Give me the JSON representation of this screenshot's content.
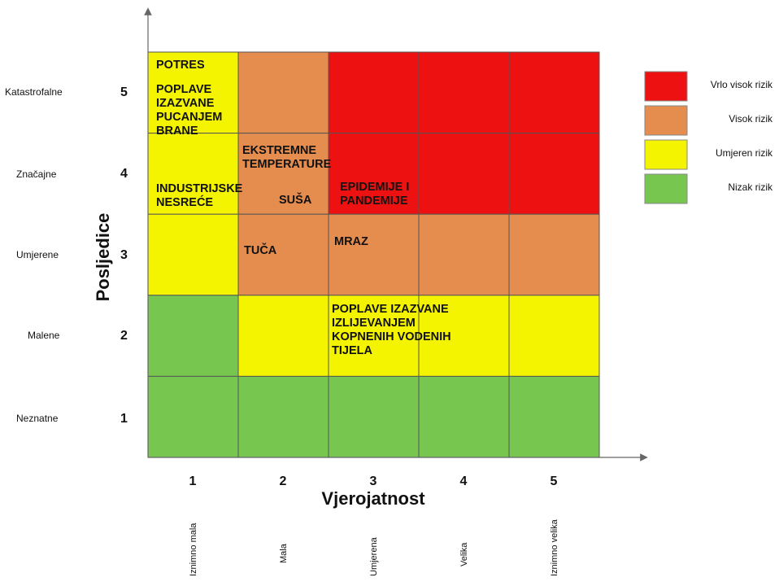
{
  "colors": {
    "very_high": "#ee1111",
    "high": "#e58c4f",
    "medium": "#f4f400",
    "low": "#76c64f",
    "grid_line": "#555555",
    "axis": "#666666"
  },
  "y_axis": {
    "title": "Posljedice",
    "levels": [
      {
        "number": "1",
        "name": "Neznatne"
      },
      {
        "number": "2",
        "name": "Malene"
      },
      {
        "number": "3",
        "name": "Umjerene"
      },
      {
        "number": "4",
        "name": "Značajne"
      },
      {
        "number": "5",
        "name": "Katastrofalne"
      }
    ]
  },
  "x_axis": {
    "title": "Vjerojatnost",
    "levels": [
      {
        "number": "1",
        "name": "Iznimno mala"
      },
      {
        "number": "2",
        "name": "Mala"
      },
      {
        "number": "3",
        "name": "Umjerena"
      },
      {
        "number": "4",
        "name": "Velika"
      },
      {
        "number": "5",
        "name": "Iznimno velika"
      }
    ]
  },
  "risk_grid": [
    [
      "medium",
      "high",
      "very_high",
      "very_high",
      "very_high"
    ],
    [
      "medium",
      "high",
      "very_high",
      "very_high",
      "very_high"
    ],
    [
      "medium",
      "high",
      "high",
      "high",
      "high"
    ],
    [
      "low",
      "medium",
      "medium",
      "medium",
      "medium"
    ],
    [
      "low",
      "low",
      "low",
      "low",
      "low"
    ]
  ],
  "legend": [
    {
      "key": "very_high",
      "label": "Vrlo visok rizik"
    },
    {
      "key": "high",
      "label": "Visok rizik"
    },
    {
      "key": "medium",
      "label": "Umjeren rizik"
    },
    {
      "key": "low",
      "label": "Nizak rizik"
    }
  ],
  "hazards": [
    {
      "id": "potres",
      "lines": [
        "POTRES"
      ]
    },
    {
      "id": "poplave-brane",
      "lines": [
        "POPLAVE",
        "IZAZVANE",
        "PUCANJEM",
        "BRANE"
      ]
    },
    {
      "id": "industrijske",
      "lines": [
        "INDUSTRIJSKE",
        "NESREĆE"
      ]
    },
    {
      "id": "ekstremne",
      "lines": [
        "EKSTREMNE",
        "TEMPERATURE"
      ]
    },
    {
      "id": "susa",
      "lines": [
        "SUŠA"
      ]
    },
    {
      "id": "epidemije",
      "lines": [
        "EPIDEMIJE I",
        "PANDEMIJE"
      ]
    },
    {
      "id": "tuca",
      "lines": [
        "TUČA"
      ]
    },
    {
      "id": "mraz",
      "lines": [
        "MRAZ"
      ]
    },
    {
      "id": "poplave-kopnenih",
      "lines": [
        "POPLAVE IZAZVANE",
        "IZLIJEVANJEM",
        "KOPNENIH VODENIH",
        "TIJELA"
      ]
    }
  ]
}
